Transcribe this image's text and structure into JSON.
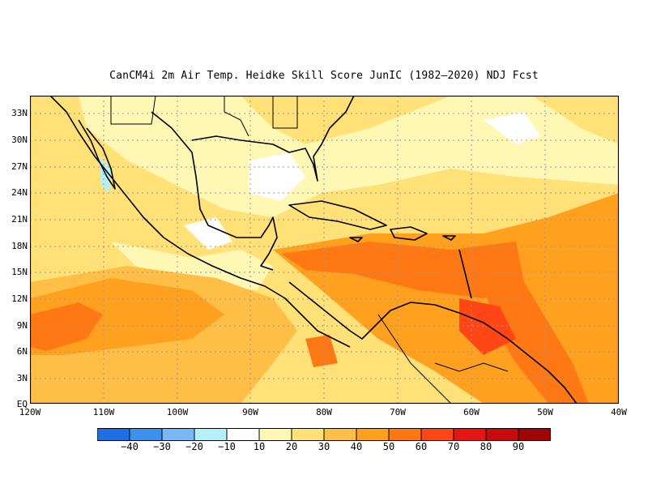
{
  "title": "CanCM4i  2m Air Temp. Heidke Skill Score JunIC (1982–2020) NDJ Fcst",
  "y_labels": [
    "33N",
    "30N",
    "27N",
    "24N",
    "21N",
    "18N",
    "15N",
    "12N",
    "9N",
    "6N",
    "3N",
    "EQ"
  ],
  "x_labels": [
    "120W",
    "110W",
    "100W",
    "90W",
    "80W",
    "70W",
    "60W",
    "50W",
    "40W"
  ],
  "colorbar": {
    "colors": [
      "#1e6ee6",
      "#3c91ee",
      "#78b9f8",
      "#b4f0fa",
      "#ffffff",
      "#fff7b4",
      "#ffe178",
      "#ffbe46",
      "#ffa01e",
      "#ff7814",
      "#ff4614",
      "#e61414",
      "#c80a0a",
      "#a00505"
    ],
    "labels": [
      "−40",
      "−30",
      "−20",
      "−10",
      "10",
      "20",
      "30",
      "40",
      "50",
      "60",
      "70",
      "80",
      "90"
    ]
  }
}
